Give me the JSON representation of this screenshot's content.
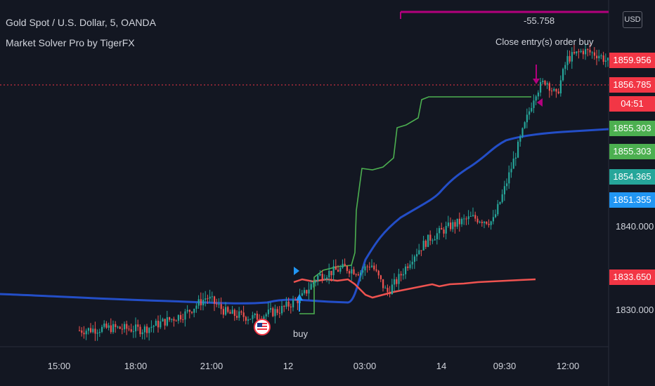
{
  "header": {
    "symbol_line": "Gold Spot / U.S. Dollar, 5, OANDA",
    "indicator_line": "Market Solver Pro by TigerFX",
    "currency_button": "USD"
  },
  "colors": {
    "background": "#131722",
    "up_candle": "#26a69a",
    "down_candle": "#ef5350",
    "green_line": "#4caf50",
    "blue_line": "#2962ff",
    "red_line": "#f23645",
    "magenta": "#b3007d",
    "price_line": "#f23645"
  },
  "price_tags": [
    {
      "label": "1859.956",
      "color": "#f23645"
    },
    {
      "label": "1856.785",
      "color": "#f23645"
    },
    {
      "label": "04:51",
      "color": "#f23645"
    },
    {
      "label": "1855.303",
      "color": "#4caf50"
    },
    {
      "label": "1855.303",
      "color": "#4caf50"
    },
    {
      "label": "1854.365",
      "color": "#26a69a"
    },
    {
      "label": "1851.355",
      "color": "#2196f3"
    },
    {
      "label": "1833.650",
      "color": "#f23645"
    }
  ],
  "annotations": {
    "trade_value": "-55.758",
    "close_text": "Close entry(s) order buy",
    "buy_text": "buy"
  },
  "chart_data": {
    "type": "candlestick",
    "title": "Gold Spot / U.S. Dollar, 5, OANDA",
    "x_ticks": [
      "15:00",
      "18:00",
      "21:00",
      "12",
      "03:00",
      "14",
      "09:30",
      "12:00"
    ],
    "y_ticks": [
      1830.0,
      1840.0
    ],
    "y_range": [
      1826.0,
      1862.0
    ],
    "current_price": 1856.785,
    "price_path": [
      [
        0,
        1827.5
      ],
      [
        0.06,
        1827.8
      ],
      [
        0.12,
        1827.6
      ],
      [
        0.2,
        1829.5
      ],
      [
        0.24,
        1831.5
      ],
      [
        0.28,
        1829.5
      ],
      [
        0.33,
        1829.0
      ],
      [
        0.38,
        1830.0
      ],
      [
        0.42,
        1831.5
      ],
      [
        0.45,
        1834.0
      ],
      [
        0.5,
        1835.0
      ],
      [
        0.53,
        1834.5
      ],
      [
        0.55,
        1835.5
      ],
      [
        0.58,
        1832.0
      ],
      [
        0.6,
        1833.5
      ],
      [
        0.63,
        1836.5
      ],
      [
        0.66,
        1838.5
      ],
      [
        0.7,
        1840.0
      ],
      [
        0.74,
        1841.0
      ],
      [
        0.78,
        1840.5
      ],
      [
        0.8,
        1844.0
      ],
      [
        0.82,
        1848.0
      ],
      [
        0.84,
        1852.0
      ],
      [
        0.86,
        1856.0
      ],
      [
        0.88,
        1857.5
      ],
      [
        0.9,
        1855.5
      ],
      [
        0.92,
        1860.0
      ],
      [
        0.95,
        1861.0
      ],
      [
        0.98,
        1860.5
      ],
      [
        1.0,
        1859.5
      ]
    ],
    "series": [
      {
        "name": "Market Solver Pro by TigerFX",
        "label": "1855.303",
        "color": "#4caf50"
      },
      {
        "name": "Market Solver Pro by TigerFX",
        "label": "1851.355",
        "color": "#2962ff"
      },
      {
        "name": "Market Solver Pro by TigerFX",
        "label": "1833.650",
        "color": "#f23645"
      }
    ]
  }
}
